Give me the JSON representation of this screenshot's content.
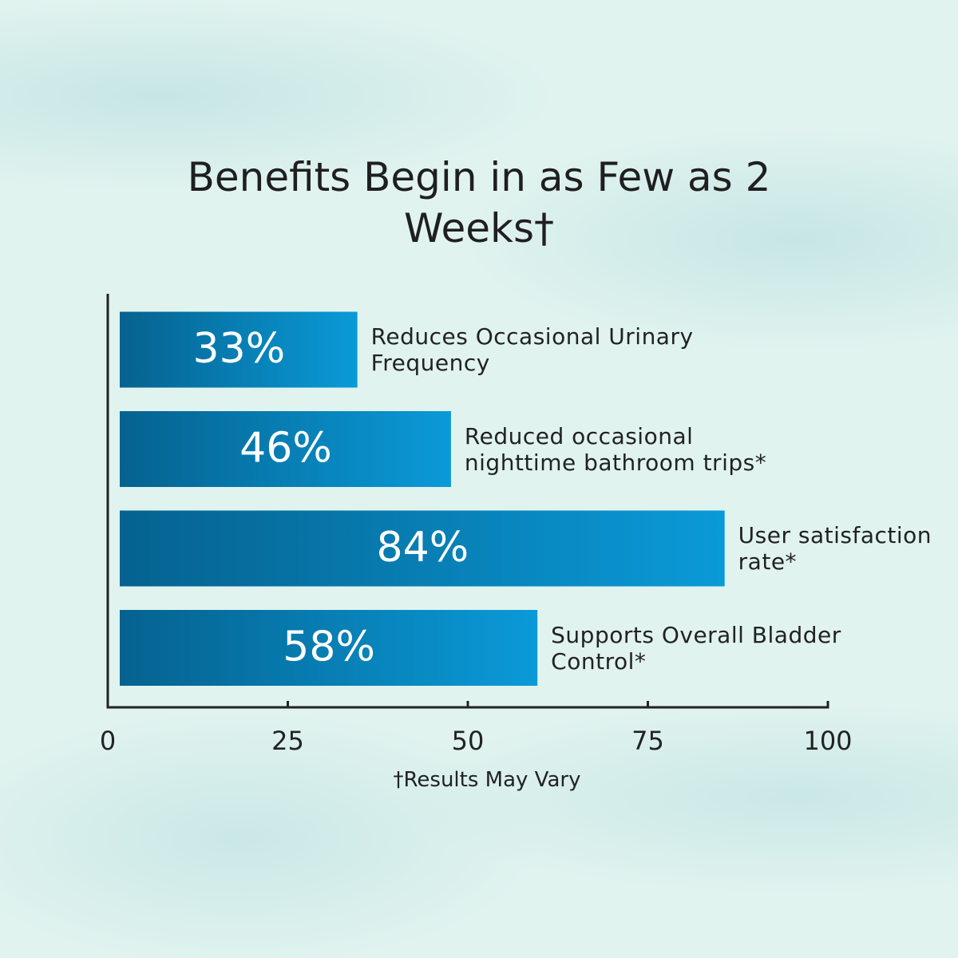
{
  "chart_data": {
    "type": "barh",
    "title": "Benefits Begin in as Few as 2 Weeks†",
    "categories": [
      "Reduces Occasional Urinary Frequency",
      "Reduced occasional nighttime bathroom trips*",
      "User satisfaction rate*",
      "Supports Overall Bladder Control*"
    ],
    "values": [
      33,
      46,
      84,
      58
    ],
    "value_labels": [
      "33%",
      "46%",
      "84%",
      "58%"
    ],
    "color": "#0a9ad8",
    "xlim": [
      0,
      100
    ],
    "xticks": [
      0,
      25,
      50,
      75,
      100
    ],
    "footnote": "†Results May Vary"
  }
}
